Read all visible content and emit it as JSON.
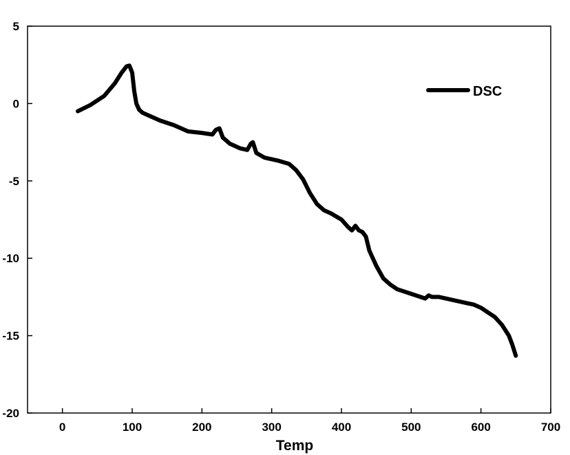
{
  "chart_data": {
    "type": "line",
    "title": "",
    "xlabel": "Temp",
    "ylabel": "",
    "xlim": [
      -50,
      700
    ],
    "ylim": [
      -20,
      5
    ],
    "xticks": [
      0,
      100,
      200,
      300,
      400,
      500,
      600,
      700
    ],
    "yticks": [
      5,
      0,
      -5,
      -10,
      -15,
      -20
    ],
    "xtick_labels": [
      "0",
      "100",
      "200",
      "300",
      "400",
      "500",
      "600",
      "700"
    ],
    "ytick_labels": [
      "5",
      "0",
      "-5",
      "-10",
      "-15",
      "-20"
    ],
    "grid": false,
    "legend": {
      "position": "top-right",
      "entries": [
        "DSC"
      ]
    },
    "series": [
      {
        "name": "DSC",
        "color": "#000000",
        "x": [
          22,
          40,
          60,
          75,
          85,
          92,
          96,
          100,
          103,
          106,
          110,
          115,
          125,
          140,
          160,
          180,
          200,
          215,
          220,
          225,
          230,
          240,
          255,
          265,
          270,
          273,
          278,
          290,
          310,
          325,
          335,
          345,
          355,
          365,
          375,
          385,
          400,
          410,
          415,
          420,
          425,
          430,
          435,
          440,
          450,
          460,
          470,
          480,
          500,
          520,
          525,
          530,
          540,
          560,
          580,
          590,
          600,
          610,
          620,
          630,
          640,
          645,
          650
        ],
        "values": [
          -0.5,
          -0.1,
          0.5,
          1.3,
          2.0,
          2.4,
          2.45,
          2.0,
          0.8,
          0.0,
          -0.4,
          -0.6,
          -0.8,
          -1.1,
          -1.4,
          -1.8,
          -1.9,
          -2.0,
          -1.7,
          -1.6,
          -2.2,
          -2.6,
          -2.9,
          -3.0,
          -2.6,
          -2.5,
          -3.2,
          -3.5,
          -3.7,
          -3.9,
          -4.3,
          -4.9,
          -5.8,
          -6.5,
          -6.9,
          -7.1,
          -7.5,
          -8.0,
          -8.2,
          -7.9,
          -8.2,
          -8.3,
          -8.6,
          -9.5,
          -10.5,
          -11.3,
          -11.7,
          -12.0,
          -12.3,
          -12.6,
          -12.4,
          -12.5,
          -12.5,
          -12.7,
          -12.9,
          -13.0,
          -13.2,
          -13.5,
          -13.8,
          -14.3,
          -15.0,
          -15.6,
          -16.3
        ]
      }
    ]
  }
}
